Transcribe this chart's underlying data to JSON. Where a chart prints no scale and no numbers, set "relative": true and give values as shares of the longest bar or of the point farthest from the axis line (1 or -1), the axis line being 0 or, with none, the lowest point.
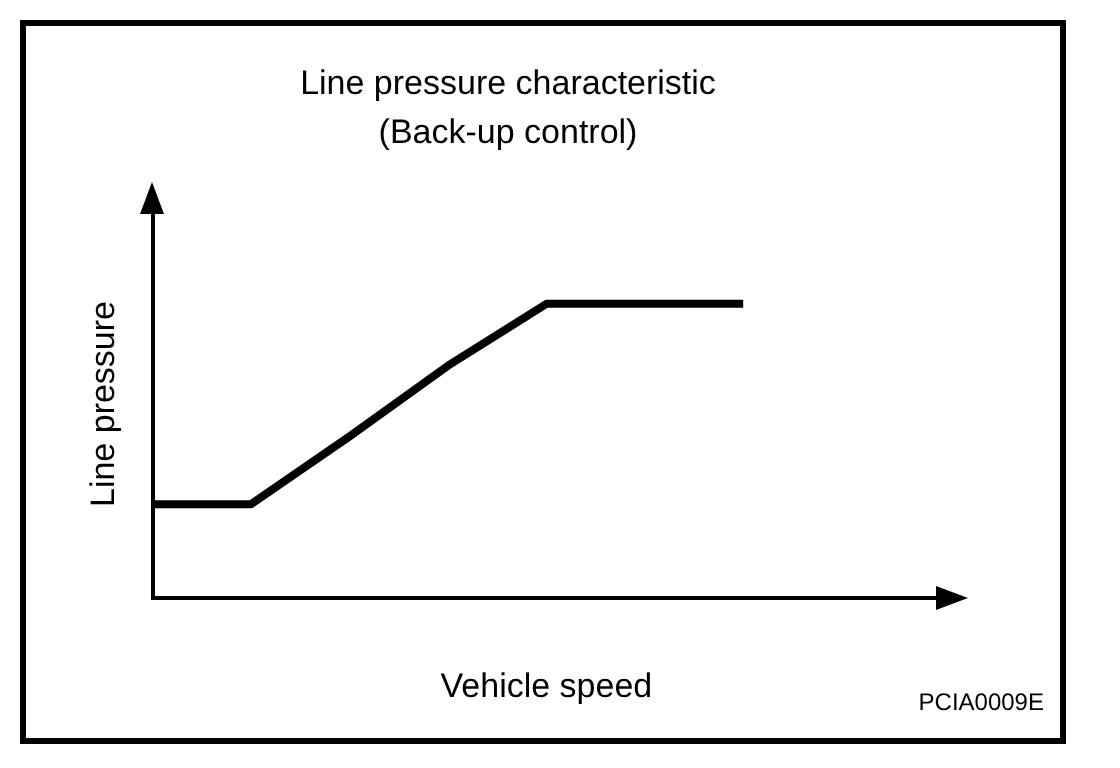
{
  "chart_data": {
    "type": "line",
    "title": "Line pressure characteristic",
    "subtitle": "(Back-up control)",
    "xlabel": "Vehicle speed",
    "ylabel": "Line pressure",
    "relative": true,
    "categories": [
      null,
      null,
      null,
      null,
      null,
      null,
      null,
      null,
      null
    ],
    "series": [
      {
        "color": "#000000",
        "values": [
          0.32,
          0.32,
          0.55,
          0.79,
          1,
          1,
          1,
          null,
          null
        ]
      }
    ],
    "grid": false,
    "legend": false,
    "marker": "none",
    "line_style": "solid",
    "annotations": [
      "PCIA0009E"
    ]
  }
}
